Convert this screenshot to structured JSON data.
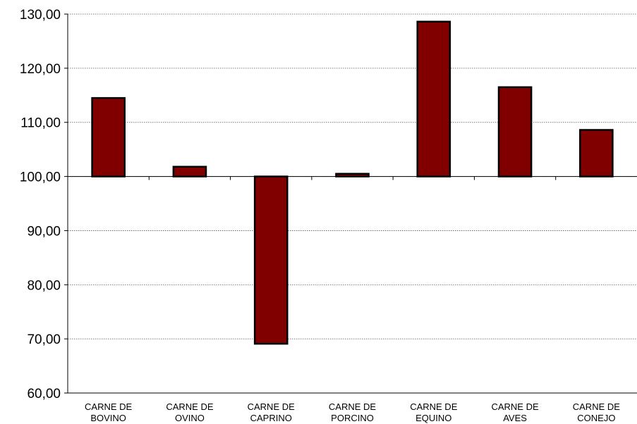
{
  "chart_data": {
    "type": "bar",
    "title": "",
    "xlabel": "",
    "ylabel": "",
    "baseline": 100,
    "ylim": [
      60,
      130
    ],
    "y_ticks": [
      "60,00",
      "70,00",
      "80,00",
      "90,00",
      "100,00",
      "110,00",
      "120,00",
      "130,00"
    ],
    "y_tick_values": [
      60,
      70,
      80,
      90,
      100,
      110,
      120,
      130
    ],
    "categories": [
      [
        "CARNE DE",
        "BOVINO"
      ],
      [
        "CARNE DE",
        "OVINO"
      ],
      [
        "CARNE DE",
        "CAPRINO"
      ],
      [
        "CARNE DE",
        "PORCINO"
      ],
      [
        "CARNE DE",
        "EQUINO"
      ],
      [
        "CARNE DE",
        "AVES"
      ],
      [
        "CARNE DE",
        "CONEJO"
      ]
    ],
    "values": [
      114.5,
      101.8,
      69.1,
      100.5,
      128.6,
      116.5,
      108.6
    ],
    "colors": {
      "bar": "#800000",
      "bar_stroke": "#000000",
      "grid": "#555555"
    },
    "grid": true,
    "legend": "none"
  }
}
